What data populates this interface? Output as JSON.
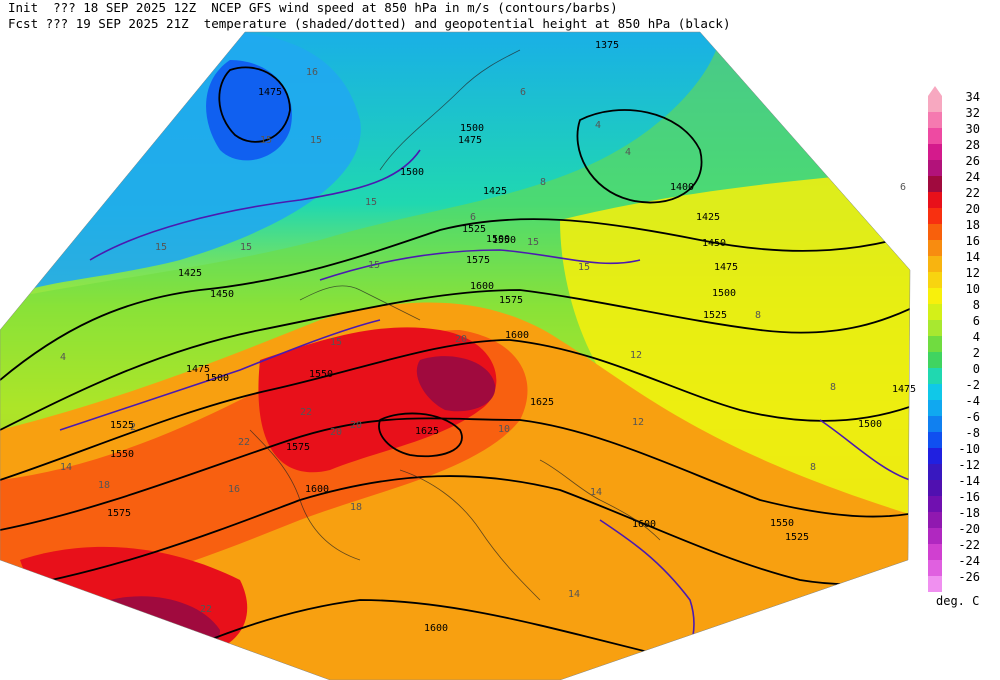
{
  "header": {
    "line1_left": "Init  ??? 18 SEP 2025 12Z",
    "line1_right": "NCEP GFS wind speed at 850 hPa in m/s (contours/barbs)",
    "line2_left": "Fcst ??? 19 SEP 2025 21Z",
    "line2_right": "temperature (shaded/dotted) and geopotential height at 850 hPa (black)"
  },
  "legend": {
    "unit": "deg. C",
    "levels": [
      34,
      32,
      30,
      28,
      26,
      24,
      22,
      20,
      18,
      16,
      14,
      12,
      10,
      8,
      6,
      4,
      2,
      0,
      -2,
      -4,
      -6,
      -8,
      -10,
      -12,
      -14,
      -16,
      -18,
      -20,
      -22,
      -24,
      -26
    ],
    "colors": [
      "#f7a8c0",
      "#f57ab0",
      "#ee4aa2",
      "#d41a8c",
      "#b2127a",
      "#a00a3e",
      "#e8101a",
      "#f83010",
      "#f8600c",
      "#f88c10",
      "#f8b410",
      "#f8d410",
      "#f8f00c",
      "#d4f018",
      "#a8e830",
      "#70dc40",
      "#40d460",
      "#20d8b0",
      "#10c8e8",
      "#10a8f0",
      "#1080f0",
      "#1050f0",
      "#2020e0",
      "#3818c0",
      "#5010b0",
      "#7010b0",
      "#9018b0",
      "#b028c0",
      "#d040d0",
      "#e060e0",
      "#f090f0"
    ]
  },
  "map": {
    "temperature_labels": [
      "16",
      "15",
      "15",
      "15",
      "15",
      "15",
      "15",
      "15",
      "15",
      "15",
      "12",
      "12",
      "8",
      "8",
      "8",
      "6",
      "6",
      "4",
      "4",
      "4",
      "14",
      "14",
      "18",
      "18",
      "16",
      "20",
      "20",
      "20",
      "22",
      "22",
      "10",
      "14",
      "22",
      "8",
      "6",
      "2"
    ],
    "height_labels": [
      "1475",
      "1475",
      "1425",
      "1450",
      "1400",
      "1425",
      "1450",
      "1475",
      "1500",
      "1525",
      "1550",
      "1575",
      "1600",
      "1625",
      "1625",
      "1575",
      "1550",
      "1525",
      "1500",
      "1575",
      "1600",
      "1600",
      "1550",
      "1525",
      "1500",
      "1475",
      "1600",
      "1500",
      "1425",
      "1475",
      "1500",
      "1525",
      "1550",
      "1575",
      "1600",
      "1500",
      "1375"
    ]
  }
}
